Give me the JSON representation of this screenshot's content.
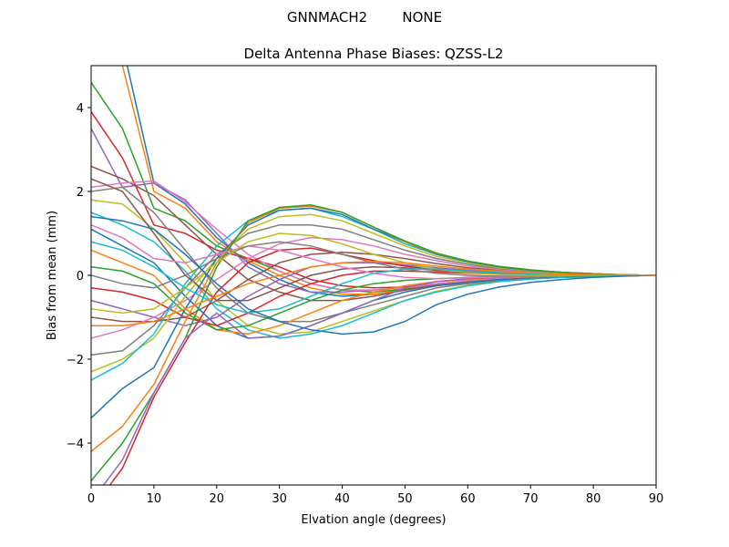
{
  "chart_data": {
    "type": "line",
    "suptitle": "GNNMACH2        NONE",
    "title": "Delta Antenna Phase Biases: QZSS-L2",
    "xlabel": "Elvation angle (degrees)",
    "ylabel": "Bias from mean (mm)",
    "xlim": [
      0,
      90
    ],
    "ylim": [
      -5,
      5
    ],
    "xticks": [
      "0",
      "10",
      "20",
      "30",
      "40",
      "50",
      "60",
      "70",
      "80",
      "90"
    ],
    "yticks": [
      "−4",
      "−2",
      "0",
      "2",
      "4"
    ],
    "grid": false,
    "legend": "none",
    "x": [
      0,
      5,
      10,
      15,
      20,
      25,
      30,
      35,
      40,
      45,
      50,
      55,
      60,
      65,
      70,
      75,
      80,
      85,
      90
    ],
    "colors": [
      "#1f77b4",
      "#ff7f0e",
      "#2ca02c",
      "#d62728",
      "#9467bd",
      "#8c564b",
      "#e377c2",
      "#7f7f7f",
      "#bcbd22",
      "#17becf"
    ],
    "series": [
      {
        "values": [
          5.6,
          5.5,
          2.2,
          1.7,
          0.9,
          0.3,
          -0.1,
          -0.4,
          -0.5,
          -0.45,
          -0.35,
          -0.25,
          -0.18,
          -0.12,
          -0.08,
          -0.05,
          -0.03,
          -0.01,
          0
        ]
      },
      {
        "values": [
          5.2,
          5.0,
          2.0,
          1.6,
          0.8,
          0.35,
          0.0,
          -0.3,
          -0.45,
          -0.45,
          -0.35,
          -0.25,
          -0.17,
          -0.12,
          -0.08,
          -0.05,
          -0.03,
          -0.01,
          0
        ]
      },
      {
        "values": [
          4.6,
          3.5,
          1.6,
          1.3,
          0.7,
          0.4,
          0.1,
          -0.2,
          -0.35,
          -0.4,
          -0.33,
          -0.24,
          -0.16,
          -0.11,
          -0.07,
          -0.04,
          -0.02,
          -0.01,
          0
        ]
      },
      {
        "values": [
          3.9,
          2.8,
          1.2,
          1.0,
          0.6,
          0.4,
          0.2,
          -0.1,
          -0.25,
          -0.3,
          -0.28,
          -0.2,
          -0.14,
          -0.1,
          -0.06,
          -0.04,
          -0.02,
          -0.01,
          0
        ]
      },
      {
        "values": [
          3.5,
          2.1,
          2.2,
          1.8,
          1.0,
          0.2,
          -0.2,
          -0.4,
          -0.4,
          -0.35,
          -0.3,
          -0.2,
          -0.13,
          -0.09,
          -0.06,
          -0.03,
          -0.02,
          -0.01,
          0
        ]
      },
      {
        "values": [
          2.6,
          2.3,
          1.9,
          1.2,
          0.5,
          -0.1,
          -0.4,
          -0.6,
          -0.6,
          -0.5,
          -0.35,
          -0.22,
          -0.14,
          -0.09,
          -0.06,
          -0.03,
          -0.02,
          -0.01,
          0
        ]
      },
      {
        "values": [
          2.1,
          2.2,
          2.25,
          1.75,
          1.1,
          0.5,
          0.1,
          -0.2,
          -0.35,
          -0.35,
          -0.3,
          -0.2,
          -0.13,
          -0.09,
          -0.06,
          -0.03,
          -0.02,
          -0.01,
          0
        ]
      },
      {
        "values": [
          2.0,
          2.1,
          1.5,
          0.6,
          -0.3,
          -0.9,
          -1.1,
          -1.1,
          -0.9,
          -0.7,
          -0.5,
          -0.3,
          -0.2,
          -0.13,
          -0.08,
          -0.05,
          -0.03,
          -0.01,
          0
        ]
      },
      {
        "values": [
          1.8,
          1.7,
          1.1,
          0.3,
          -0.6,
          -1.2,
          -1.4,
          -1.35,
          -1.1,
          -0.85,
          -0.6,
          -0.38,
          -0.24,
          -0.15,
          -0.09,
          -0.05,
          -0.03,
          -0.01,
          0
        ]
      },
      {
        "values": [
          1.5,
          1.2,
          0.8,
          0.1,
          -0.8,
          -1.3,
          -1.5,
          -1.4,
          -1.2,
          -0.9,
          -0.6,
          -0.4,
          -0.25,
          -0.15,
          -0.09,
          -0.05,
          -0.03,
          -0.01,
          0
        ]
      },
      {
        "values": [
          1.1,
          0.7,
          0.3,
          -0.5,
          -1.2,
          -1.5,
          -1.45,
          -1.2,
          -0.9,
          -0.6,
          -0.4,
          -0.25,
          -0.16,
          -0.1,
          -0.06,
          -0.03,
          -0.02,
          -0.01,
          0
        ]
      },
      {
        "values": [
          0.6,
          0.3,
          0.0,
          -0.8,
          -1.3,
          -1.4,
          -1.2,
          -0.9,
          -0.6,
          -0.4,
          -0.25,
          -0.15,
          -0.1,
          -0.06,
          -0.04,
          -0.02,
          -0.01,
          0,
          0
        ]
      },
      {
        "values": [
          0.2,
          0.1,
          -0.2,
          -0.9,
          -1.3,
          -1.2,
          -0.9,
          -0.6,
          -0.35,
          -0.2,
          -0.12,
          -0.08,
          -0.05,
          -0.03,
          -0.02,
          -0.01,
          0,
          0,
          0
        ]
      },
      {
        "values": [
          -0.3,
          -0.4,
          -0.6,
          -1.0,
          -1.2,
          -0.9,
          -0.5,
          -0.2,
          0.0,
          0.1,
          0.1,
          0.08,
          0.05,
          0.03,
          0.02,
          0.01,
          0,
          0,
          0
        ]
      },
      {
        "values": [
          -0.6,
          -0.8,
          -1.0,
          -1.2,
          -1.0,
          -0.5,
          -0.1,
          0.2,
          0.3,
          0.3,
          0.25,
          0.18,
          0.12,
          0.08,
          0.05,
          0.03,
          0.02,
          0.01,
          0
        ]
      },
      {
        "values": [
          -1.0,
          -1.1,
          -1.1,
          -1.0,
          -0.6,
          -0.1,
          0.3,
          0.5,
          0.55,
          0.5,
          0.4,
          0.28,
          0.18,
          0.12,
          0.07,
          0.04,
          0.02,
          0.01,
          0
        ]
      },
      {
        "values": [
          -1.5,
          -1.3,
          -1.0,
          -0.6,
          -0.1,
          0.4,
          0.75,
          0.9,
          0.85,
          0.7,
          0.5,
          0.35,
          0.22,
          0.14,
          0.09,
          0.05,
          0.03,
          0.01,
          0
        ]
      },
      {
        "values": [
          -1.9,
          -1.8,
          -1.2,
          -0.3,
          0.5,
          1.0,
          1.2,
          1.2,
          1.1,
          0.85,
          0.6,
          0.4,
          0.26,
          0.16,
          0.1,
          0.06,
          0.03,
          0.01,
          0
        ]
      },
      {
        "values": [
          -2.3,
          -2.0,
          -1.5,
          -0.5,
          0.4,
          1.1,
          1.4,
          1.45,
          1.3,
          1.0,
          0.7,
          0.45,
          0.3,
          0.18,
          0.11,
          0.06,
          0.03,
          0.01,
          0
        ]
      },
      {
        "values": [
          -2.5,
          -2.1,
          -1.4,
          -0.2,
          0.7,
          1.3,
          1.55,
          1.6,
          1.4,
          1.1,
          0.75,
          0.5,
          0.32,
          0.2,
          0.12,
          0.07,
          0.04,
          0.01,
          0
        ]
      },
      {
        "values": [
          -3.4,
          -2.7,
          -2.2,
          -0.8,
          0.4,
          1.2,
          1.55,
          1.6,
          1.45,
          1.1,
          0.8,
          0.5,
          0.33,
          0.2,
          0.12,
          0.07,
          0.04,
          0.01,
          0
        ]
      },
      {
        "values": [
          -4.2,
          -3.6,
          -2.6,
          -1.1,
          0.3,
          1.25,
          1.6,
          1.65,
          1.5,
          1.15,
          0.8,
          0.52,
          0.34,
          0.21,
          0.13,
          0.07,
          0.04,
          0.01,
          0
        ]
      },
      {
        "values": [
          -4.9,
          -4.0,
          -2.8,
          -1.5,
          0.2,
          1.3,
          1.62,
          1.68,
          1.5,
          1.15,
          0.82,
          0.53,
          0.34,
          0.21,
          0.13,
          0.07,
          0.04,
          0.01,
          0
        ]
      },
      {
        "values": [
          -5.6,
          -4.6,
          -2.9,
          -1.6,
          -0.4,
          0.3,
          0.6,
          0.65,
          0.5,
          0.35,
          0.22,
          0.13,
          0.08,
          0.05,
          0.03,
          0.02,
          0.01,
          0,
          0
        ]
      },
      {
        "values": [
          -5.4,
          -4.4,
          -2.8,
          -1.5,
          -0.9,
          -1.5,
          -1.45,
          -1.2,
          -0.9,
          -0.6,
          -0.3,
          -0.15,
          -0.08,
          -0.05,
          -0.03,
          -0.02,
          -0.01,
          0,
          0
        ]
      },
      {
        "values": [
          2.3,
          2.0,
          1.0,
          0.0,
          -0.6,
          -0.6,
          -0.3,
          0.0,
          0.15,
          0.2,
          0.18,
          0.12,
          0.08,
          0.05,
          0.03,
          0.02,
          0.01,
          0,
          0
        ]
      },
      {
        "values": [
          1.2,
          0.9,
          0.4,
          0.3,
          0.5,
          0.7,
          0.6,
          0.4,
          0.2,
          0.05,
          -0.05,
          -0.08,
          -0.06,
          -0.04,
          -0.03,
          -0.02,
          -0.01,
          0,
          0
        ]
      },
      {
        "values": [
          0.0,
          -0.2,
          -0.3,
          0.0,
          0.4,
          0.7,
          0.8,
          0.7,
          0.5,
          0.3,
          0.15,
          0.05,
          0.0,
          -0.02,
          -0.02,
          -0.01,
          -0.01,
          0,
          0
        ]
      },
      {
        "values": [
          -0.8,
          -0.9,
          -0.8,
          -0.3,
          0.3,
          0.8,
          1.0,
          0.95,
          0.75,
          0.5,
          0.3,
          0.15,
          0.06,
          0.02,
          0.0,
          0.0,
          0,
          0,
          0
        ]
      },
      {
        "values": [
          0.8,
          0.6,
          0.2,
          -0.3,
          -0.7,
          -0.9,
          -0.8,
          -0.5,
          -0.2,
          0.05,
          0.15,
          0.15,
          0.1,
          0.06,
          0.04,
          0.02,
          0.01,
          0,
          0
        ]
      },
      {
        "values": [
          1.4,
          1.3,
          1.1,
          0.5,
          -0.2,
          -0.8,
          -1.1,
          -1.3,
          -1.4,
          -1.35,
          -1.1,
          -0.7,
          -0.45,
          -0.28,
          -0.17,
          -0.1,
          -0.05,
          -0.02,
          0
        ]
      },
      {
        "values": [
          -1.2,
          -1.2,
          -1.1,
          -0.8,
          -0.5,
          -0.2,
          0.0,
          0.2,
          0.3,
          0.33,
          0.3,
          0.22,
          0.15,
          0.1,
          0.06,
          0.03,
          0.02,
          0.01,
          0
        ]
      }
    ]
  }
}
